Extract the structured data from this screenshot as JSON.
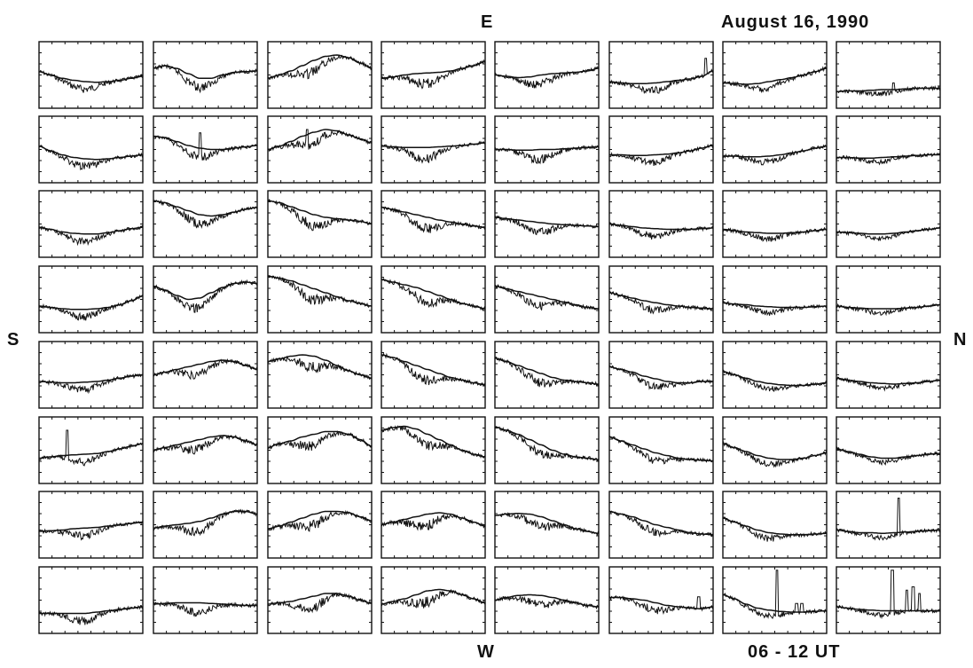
{
  "labels": {
    "east": "E",
    "west": "W",
    "south": "S",
    "north": "N",
    "date": "August 16, 1990",
    "time_range": "06 - 12 UT"
  },
  "chart_data": {
    "type": "line",
    "title": "August 16, 1990",
    "grid": false,
    "layout": {
      "rows": 8,
      "cols": 8
    },
    "series_per_panel": [
      "smooth reference curve",
      "observed noisy profile"
    ],
    "note_axes": "no tick labels or axis titles are printed",
    "panels": [
      [
        {
          "ref": [
            0.45,
            0.5,
            0.55,
            0.58,
            0.6,
            0.61,
            0.6,
            0.58,
            0.55,
            0.52
          ],
          "events": []
        },
        {
          "ref": [
            0.4,
            0.36,
            0.4,
            0.48,
            0.55,
            0.55,
            0.5,
            0.46,
            0.45,
            0.44
          ],
          "events": []
        },
        {
          "ref": [
            0.55,
            0.5,
            0.44,
            0.36,
            0.28,
            0.22,
            0.2,
            0.24,
            0.32,
            0.4
          ],
          "events": []
        },
        {
          "ref": [
            0.55,
            0.53,
            0.5,
            0.48,
            0.47,
            0.46,
            0.44,
            0.4,
            0.36,
            0.3
          ],
          "events": []
        },
        {
          "ref": [
            0.5,
            0.52,
            0.54,
            0.53,
            0.5,
            0.48,
            0.47,
            0.46,
            0.44,
            0.4
          ],
          "events": []
        },
        {
          "ref": [
            0.6,
            0.62,
            0.63,
            0.63,
            0.62,
            0.6,
            0.58,
            0.56,
            0.52,
            0.44
          ],
          "events": [
            [
              0.93,
              0.25
            ],
            [
              0.97,
              0.45
            ]
          ]
        },
        {
          "ref": [
            0.62,
            0.63,
            0.64,
            0.63,
            0.6,
            0.57,
            0.54,
            0.5,
            0.45,
            0.4
          ],
          "events": [
            [
              0.85,
              0.5
            ]
          ]
        },
        {
          "ref": [
            0.75,
            0.74,
            0.74,
            0.73,
            0.72,
            0.72,
            0.71,
            0.7,
            0.7,
            0.7
          ],
          "events": [
            [
              0.55,
              0.62
            ]
          ]
        }
      ],
      [
        {
          "ref": [
            0.45,
            0.52,
            0.58,
            0.62,
            0.64,
            0.65,
            0.64,
            0.62,
            0.6,
            0.58
          ],
          "events": []
        },
        {
          "ref": [
            0.3,
            0.32,
            0.38,
            0.44,
            0.48,
            0.5,
            0.5,
            0.48,
            0.46,
            0.44
          ],
          "events": [
            [
              0.45,
              0.25
            ]
          ]
        },
        {
          "ref": [
            0.5,
            0.45,
            0.38,
            0.3,
            0.24,
            0.2,
            0.22,
            0.28,
            0.34,
            0.4
          ],
          "events": [
            [
              0.38,
              0.2
            ]
          ]
        },
        {
          "ref": [
            0.45,
            0.46,
            0.47,
            0.47,
            0.47,
            0.46,
            0.45,
            0.44,
            0.42,
            0.4
          ],
          "events": []
        },
        {
          "ref": [
            0.5,
            0.5,
            0.51,
            0.51,
            0.5,
            0.5,
            0.49,
            0.48,
            0.47,
            0.46
          ],
          "events": []
        },
        {
          "ref": [
            0.58,
            0.58,
            0.59,
            0.59,
            0.58,
            0.57,
            0.55,
            0.52,
            0.48,
            0.44
          ],
          "events": []
        },
        {
          "ref": [
            0.6,
            0.6,
            0.61,
            0.61,
            0.6,
            0.58,
            0.55,
            0.52,
            0.48,
            0.45
          ],
          "events": []
        },
        {
          "ref": [
            0.62,
            0.62,
            0.63,
            0.63,
            0.62,
            0.61,
            0.6,
            0.59,
            0.58,
            0.58
          ],
          "events": []
        }
      ],
      [
        {
          "ref": [
            0.55,
            0.58,
            0.62,
            0.64,
            0.65,
            0.65,
            0.63,
            0.6,
            0.57,
            0.55
          ],
          "events": []
        },
        {
          "ref": [
            0.15,
            0.18,
            0.24,
            0.3,
            0.36,
            0.38,
            0.36,
            0.32,
            0.28,
            0.25
          ],
          "events": []
        },
        {
          "ref": [
            0.15,
            0.18,
            0.24,
            0.3,
            0.36,
            0.4,
            0.42,
            0.44,
            0.46,
            0.5
          ],
          "events": []
        },
        {
          "ref": [
            0.25,
            0.28,
            0.32,
            0.36,
            0.4,
            0.44,
            0.47,
            0.5,
            0.53,
            0.55
          ],
          "events": []
        },
        {
          "ref": [
            0.4,
            0.42,
            0.44,
            0.46,
            0.48,
            0.5,
            0.51,
            0.52,
            0.53,
            0.54
          ],
          "events": []
        },
        {
          "ref": [
            0.5,
            0.52,
            0.54,
            0.56,
            0.57,
            0.58,
            0.58,
            0.58,
            0.57,
            0.56
          ],
          "events": []
        },
        {
          "ref": [
            0.58,
            0.6,
            0.62,
            0.63,
            0.64,
            0.64,
            0.63,
            0.62,
            0.6,
            0.58
          ],
          "events": []
        },
        {
          "ref": [
            0.62,
            0.63,
            0.64,
            0.65,
            0.65,
            0.64,
            0.62,
            0.6,
            0.58,
            0.56
          ],
          "events": []
        }
      ],
      [
        {
          "ref": [
            0.6,
            0.62,
            0.64,
            0.65,
            0.65,
            0.64,
            0.62,
            0.58,
            0.52,
            0.45
          ],
          "events": []
        },
        {
          "ref": [
            0.3,
            0.36,
            0.44,
            0.5,
            0.48,
            0.4,
            0.32,
            0.26,
            0.24,
            0.26
          ],
          "events": []
        },
        {
          "ref": [
            0.15,
            0.18,
            0.22,
            0.28,
            0.34,
            0.4,
            0.46,
            0.52,
            0.56,
            0.6
          ],
          "events": []
        },
        {
          "ref": [
            0.2,
            0.24,
            0.28,
            0.32,
            0.38,
            0.44,
            0.5,
            0.56,
            0.6,
            0.64
          ],
          "events": []
        },
        {
          "ref": [
            0.3,
            0.34,
            0.38,
            0.42,
            0.46,
            0.5,
            0.54,
            0.58,
            0.62,
            0.64
          ],
          "events": []
        },
        {
          "ref": [
            0.4,
            0.44,
            0.48,
            0.52,
            0.55,
            0.58,
            0.6,
            0.62,
            0.63,
            0.64
          ],
          "events": []
        },
        {
          "ref": [
            0.55,
            0.57,
            0.58,
            0.6,
            0.61,
            0.62,
            0.62,
            0.62,
            0.61,
            0.6
          ],
          "events": []
        },
        {
          "ref": [
            0.6,
            0.62,
            0.63,
            0.64,
            0.64,
            0.64,
            0.63,
            0.62,
            0.6,
            0.58
          ],
          "events": []
        }
      ],
      [
        {
          "ref": [
            0.6,
            0.61,
            0.62,
            0.62,
            0.61,
            0.6,
            0.58,
            0.55,
            0.52,
            0.5
          ],
          "events": []
        },
        {
          "ref": [
            0.5,
            0.46,
            0.42,
            0.38,
            0.34,
            0.3,
            0.28,
            0.3,
            0.36,
            0.42
          ],
          "events": []
        },
        {
          "ref": [
            0.3,
            0.26,
            0.22,
            0.2,
            0.22,
            0.28,
            0.36,
            0.44,
            0.5,
            0.55
          ],
          "events": []
        },
        {
          "ref": [
            0.2,
            0.24,
            0.3,
            0.36,
            0.42,
            0.48,
            0.54,
            0.58,
            0.62,
            0.65
          ],
          "events": []
        },
        {
          "ref": [
            0.25,
            0.3,
            0.36,
            0.42,
            0.48,
            0.54,
            0.58,
            0.6,
            0.62,
            0.64
          ],
          "events": []
        },
        {
          "ref": [
            0.38,
            0.42,
            0.46,
            0.52,
            0.56,
            0.6,
            0.62,
            0.62,
            0.6,
            0.6
          ],
          "events": []
        },
        {
          "ref": [
            0.45,
            0.5,
            0.55,
            0.6,
            0.63,
            0.65,
            0.66,
            0.66,
            0.64,
            0.62
          ],
          "events": []
        },
        {
          "ref": [
            0.55,
            0.58,
            0.6,
            0.62,
            0.63,
            0.64,
            0.63,
            0.62,
            0.6,
            0.58
          ],
          "events": []
        }
      ],
      [
        {
          "ref": [
            0.62,
            0.6,
            0.58,
            0.57,
            0.56,
            0.55,
            0.52,
            0.48,
            0.44,
            0.4
          ],
          "events": [
            [
              0.27,
              0.2
            ]
          ]
        },
        {
          "ref": [
            0.5,
            0.46,
            0.42,
            0.38,
            0.34,
            0.3,
            0.28,
            0.3,
            0.36,
            0.42
          ],
          "events": []
        },
        {
          "ref": [
            0.46,
            0.4,
            0.36,
            0.3,
            0.26,
            0.22,
            0.22,
            0.26,
            0.34,
            0.44
          ],
          "events": []
        },
        {
          "ref": [
            0.2,
            0.16,
            0.14,
            0.18,
            0.26,
            0.34,
            0.42,
            0.5,
            0.56,
            0.6
          ],
          "events": []
        },
        {
          "ref": [
            0.15,
            0.2,
            0.26,
            0.34,
            0.42,
            0.5,
            0.56,
            0.6,
            0.62,
            0.64
          ],
          "events": []
        },
        {
          "ref": [
            0.3,
            0.36,
            0.42,
            0.48,
            0.54,
            0.58,
            0.62,
            0.64,
            0.65,
            0.66
          ],
          "events": []
        },
        {
          "ref": [
            0.4,
            0.46,
            0.52,
            0.58,
            0.62,
            0.64,
            0.64,
            0.62,
            0.58,
            0.54
          ],
          "events": []
        },
        {
          "ref": [
            0.48,
            0.52,
            0.56,
            0.6,
            0.62,
            0.62,
            0.6,
            0.58,
            0.56,
            0.55
          ],
          "events": []
        }
      ],
      [
        {
          "ref": [
            0.6,
            0.59,
            0.58,
            0.56,
            0.55,
            0.54,
            0.52,
            0.5,
            0.48,
            0.46
          ],
          "events": []
        },
        {
          "ref": [
            0.55,
            0.52,
            0.5,
            0.48,
            0.45,
            0.4,
            0.34,
            0.3,
            0.3,
            0.34
          ],
          "events": []
        },
        {
          "ref": [
            0.56,
            0.52,
            0.46,
            0.4,
            0.34,
            0.3,
            0.3,
            0.32,
            0.38,
            0.44
          ],
          "events": []
        },
        {
          "ref": [
            0.5,
            0.46,
            0.42,
            0.38,
            0.34,
            0.32,
            0.34,
            0.4,
            0.46,
            0.52
          ],
          "events": []
        },
        {
          "ref": [
            0.36,
            0.34,
            0.33,
            0.34,
            0.38,
            0.44,
            0.5,
            0.56,
            0.6,
            0.63
          ],
          "events": []
        },
        {
          "ref": [
            0.3,
            0.34,
            0.38,
            0.44,
            0.5,
            0.54,
            0.58,
            0.62,
            0.64,
            0.65
          ],
          "events": []
        },
        {
          "ref": [
            0.4,
            0.46,
            0.52,
            0.58,
            0.62,
            0.64,
            0.65,
            0.65,
            0.64,
            0.63
          ],
          "events": []
        },
        {
          "ref": [
            0.58,
            0.6,
            0.62,
            0.62,
            0.63,
            0.62,
            0.61,
            0.6,
            0.59,
            0.58
          ],
          "events": [
            [
              0.6,
              0.1
            ]
          ]
        }
      ],
      [
        {
          "ref": [
            0.7,
            0.7,
            0.7,
            0.7,
            0.7,
            0.68,
            0.66,
            0.64,
            0.62,
            0.6
          ],
          "events": []
        },
        {
          "ref": [
            0.56,
            0.55,
            0.54,
            0.54,
            0.54,
            0.55,
            0.56,
            0.57,
            0.58,
            0.58
          ],
          "events": []
        },
        {
          "ref": [
            0.56,
            0.54,
            0.52,
            0.48,
            0.44,
            0.4,
            0.4,
            0.44,
            0.5,
            0.55
          ],
          "events": []
        },
        {
          "ref": [
            0.56,
            0.52,
            0.48,
            0.42,
            0.36,
            0.34,
            0.36,
            0.42,
            0.48,
            0.54
          ],
          "events": []
        },
        {
          "ref": [
            0.5,
            0.46,
            0.43,
            0.42,
            0.43,
            0.46,
            0.5,
            0.54,
            0.58,
            0.6
          ],
          "events": []
        },
        {
          "ref": [
            0.46,
            0.46,
            0.48,
            0.5,
            0.54,
            0.58,
            0.6,
            0.62,
            0.63,
            0.6
          ],
          "events": [
            [
              0.86,
              0.45
            ]
          ]
        },
        {
          "ref": [
            0.42,
            0.48,
            0.56,
            0.62,
            0.65,
            0.67,
            0.68,
            0.68,
            0.67,
            0.66
          ],
          "events": [
            [
              0.52,
              0.05
            ],
            [
              0.71,
              0.55
            ],
            [
              0.76,
              0.55
            ]
          ]
        },
        {
          "ref": [
            0.6,
            0.62,
            0.64,
            0.65,
            0.66,
            0.66,
            0.66,
            0.66,
            0.66,
            0.66
          ],
          "events": [
            [
              0.54,
              0.05
            ],
            [
              0.68,
              0.35
            ],
            [
              0.74,
              0.3
            ],
            [
              0.8,
              0.4
            ]
          ]
        }
      ]
    ]
  }
}
